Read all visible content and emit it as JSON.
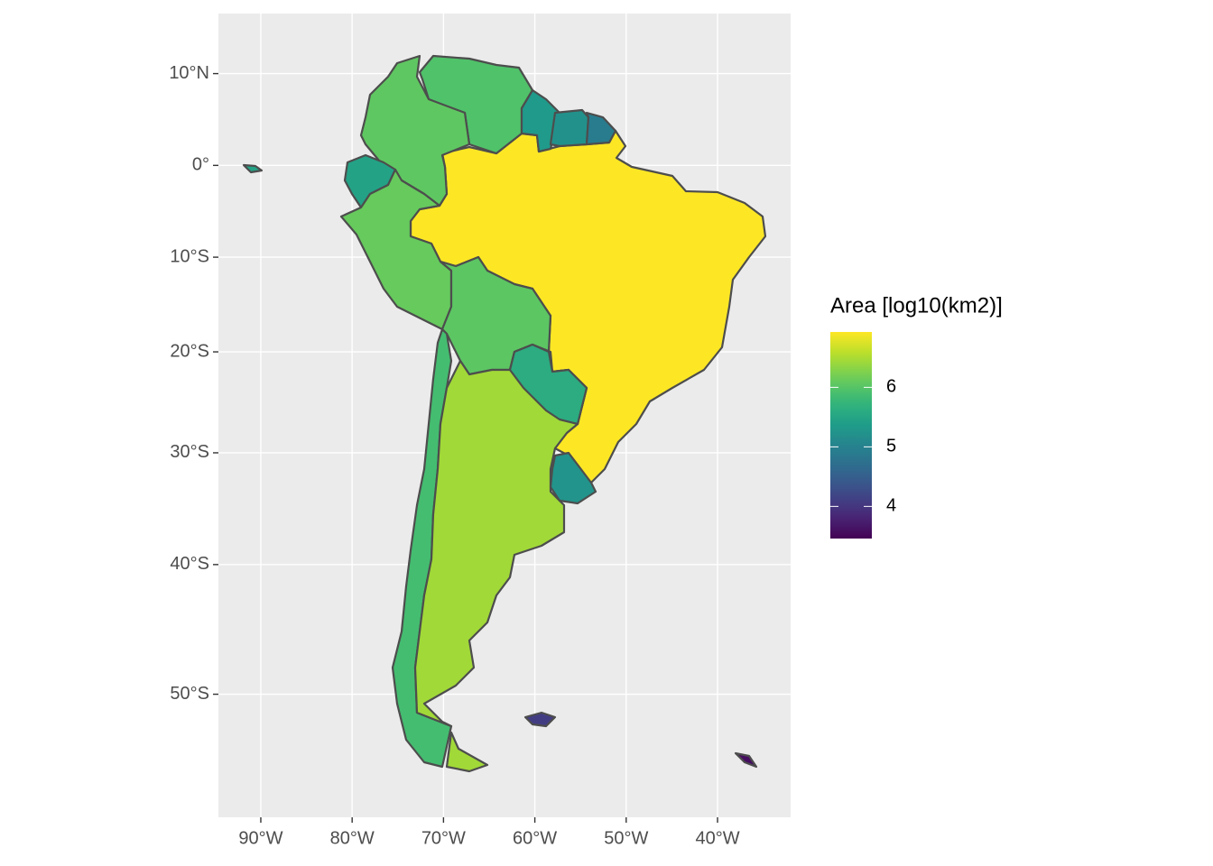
{
  "chart_data": {
    "type": "choropleth",
    "legend_title": "Area [log10(km2)]",
    "values": [
      6.93,
      5.96,
      6.06,
      5.45,
      6.11,
      6.04,
      5.88,
      6.44,
      5.61,
      5.25,
      5.33,
      5.21,
      4.92,
      4.08,
      3.59
    ],
    "colorbar_lim": [
      3.46,
      6.93
    ],
    "colorbar_ticks": [
      4,
      5,
      6
    ],
    "xlim": [
      -94.64,
      -32.0
    ],
    "ylim": [
      -57.9,
      16.4
    ],
    "xticks": [
      {
        "value": -90,
        "label": "90°W"
      },
      {
        "value": -80,
        "label": "80°W"
      },
      {
        "value": -70,
        "label": "70°W"
      },
      {
        "value": -60,
        "label": "60°W"
      },
      {
        "value": -50,
        "label": "50°W"
      },
      {
        "value": -40,
        "label": "40°W"
      }
    ],
    "yticks": [
      {
        "value": 10,
        "label": "10°N"
      },
      {
        "value": 0,
        "label": "0°"
      },
      {
        "value": -10,
        "label": "10°S"
      },
      {
        "value": -20,
        "label": "20°S"
      },
      {
        "value": -30,
        "label": "30°S"
      },
      {
        "value": -40,
        "label": "40°S"
      },
      {
        "value": -50,
        "label": "50°S"
      }
    ],
    "grid": true
  }
}
